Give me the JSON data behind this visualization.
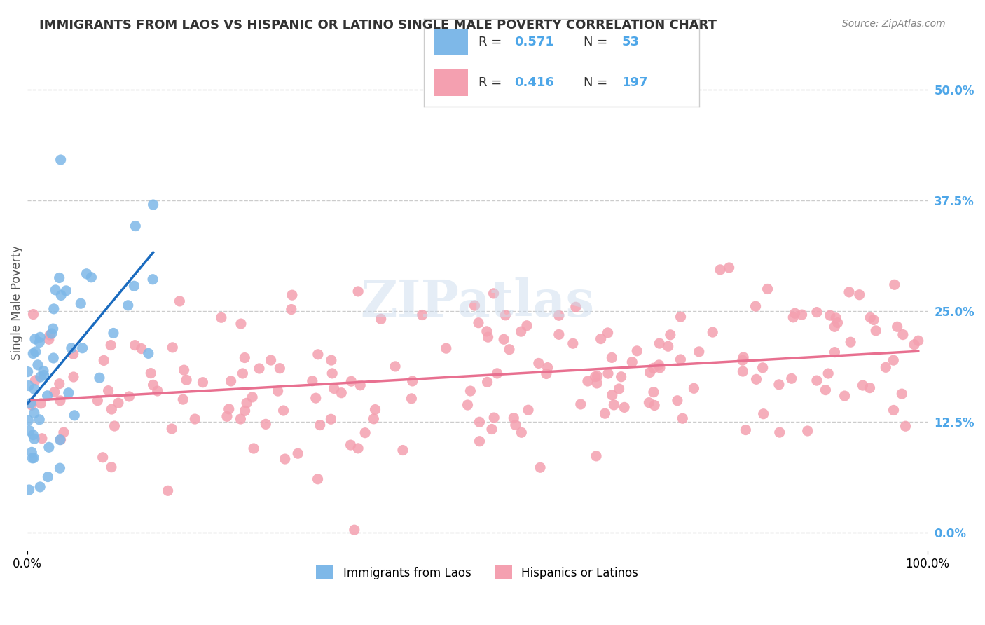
{
  "title": "IMMIGRANTS FROM LAOS VS HISPANIC OR LATINO SINGLE MALE POVERTY CORRELATION CHART",
  "source": "Source: ZipAtlas.com",
  "xlabel": "",
  "ylabel": "Single Male Poverty",
  "xlim": [
    0,
    100
  ],
  "ylim": [
    -2,
    54
  ],
  "xticks": [
    0,
    100
  ],
  "xticklabels": [
    "0.0%",
    "100.0%"
  ],
  "ytick_positions": [
    0,
    12.5,
    25,
    37.5,
    50
  ],
  "ytick_labels": [
    "",
    "12.5%",
    "25.0%",
    "37.5%",
    "50.0%"
  ],
  "legend_r1": "R = 0.571",
  "legend_n1": "N =  53",
  "legend_r2": "R = 0.416",
  "legend_n2": "N = 197",
  "series1_color": "#7eb8e8",
  "series2_color": "#f4a0b0",
  "trendline1_color": "#1a6bbf",
  "trendline2_color": "#e87090",
  "background_color": "#ffffff",
  "grid_color": "#cccccc",
  "watermark": "ZIPatlas",
  "title_color": "#333333",
  "label_color": "#555555",
  "series1_label": "Immigrants from Laos",
  "series2_label": "Hispanics or Latinos",
  "series1_R": 0.571,
  "series1_N": 53,
  "series2_R": 0.416,
  "series2_N": 197,
  "right_ytick_color": "#4da6e8"
}
